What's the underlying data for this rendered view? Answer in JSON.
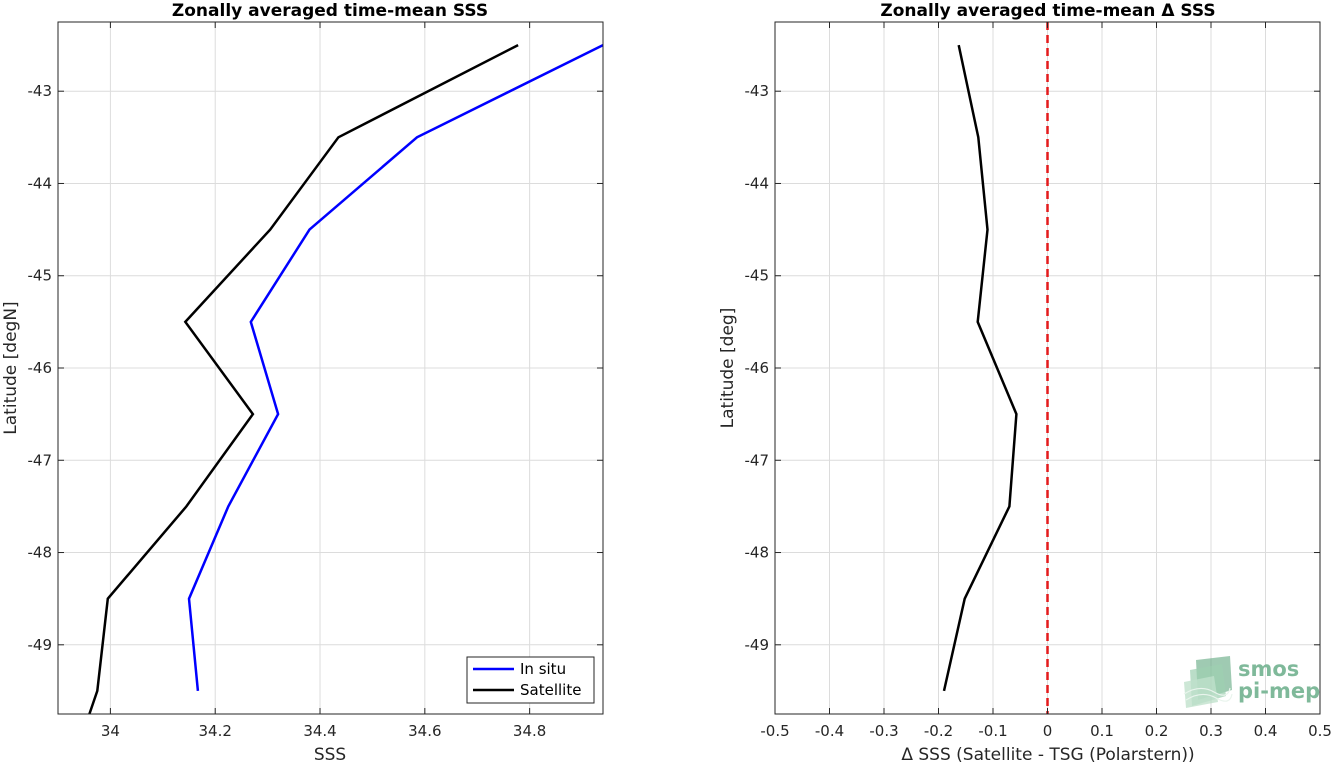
{
  "chart_data": [
    {
      "type": "line",
      "title": "Zonally averaged time-mean SSS",
      "xlabel": "SSS",
      "ylabel": "Latitude [degN]",
      "xlim": [
        33.9,
        34.94
      ],
      "ylim": [
        -49.75,
        -42.25
      ],
      "xticks": [
        "34",
        "34.2",
        "34.4",
        "34.6",
        "34.8"
      ],
      "xtick_values": [
        34,
        34.2,
        34.4,
        34.6,
        34.8
      ],
      "yticks": [
        "-43",
        "-44",
        "-45",
        "-46",
        "-47",
        "-48",
        "-49"
      ],
      "ytick_values": [
        -43,
        -44,
        -45,
        -46,
        -47,
        -48,
        -49
      ],
      "grid": true,
      "legend_position": "bottom-right",
      "series": [
        {
          "name": "In situ",
          "color": "#0000ff",
          "x": [
            34.167,
            34.15,
            34.225,
            34.32,
            34.268,
            34.38,
            34.585,
            34.94
          ],
          "y": [
            -49.5,
            -48.5,
            -47.5,
            -46.5,
            -45.5,
            -44.5,
            -43.5,
            -42.5
          ]
        },
        {
          "name": "Satellite",
          "color": "#000000",
          "x": [
            33.96,
            33.975,
            33.995,
            34.145,
            34.272,
            34.143,
            34.305,
            34.435,
            34.778
          ],
          "y": [
            -49.75,
            -49.5,
            -48.5,
            -47.5,
            -46.5,
            -45.5,
            -44.5,
            -43.5,
            -42.5
          ]
        }
      ]
    },
    {
      "type": "line",
      "title": "Zonally averaged time-mean Δ SSS",
      "xlabel": "Δ SSS (Satellite - TSG (Polarstern))",
      "ylabel": "Latitude [deg]",
      "xlim": [
        -0.5,
        0.5
      ],
      "ylim": [
        -49.75,
        -42.25
      ],
      "xticks": [
        "-0.5",
        "-0.4",
        "-0.3",
        "-0.2",
        "-0.1",
        "0",
        "0.1",
        "0.2",
        "0.3",
        "0.4",
        "0.5"
      ],
      "xtick_values": [
        -0.5,
        -0.4,
        -0.3,
        -0.2,
        -0.1,
        0,
        0.1,
        0.2,
        0.3,
        0.4,
        0.5
      ],
      "yticks": [
        "-43",
        "-44",
        "-45",
        "-46",
        "-47",
        "-48",
        "-49"
      ],
      "ytick_values": [
        -43,
        -44,
        -45,
        -46,
        -47,
        -48,
        -49
      ],
      "grid": true,
      "reference_line": {
        "x": 0,
        "color": "#e41a1c",
        "style": "dashed"
      },
      "series": [
        {
          "color": "#000000",
          "x": [
            -0.19,
            -0.152,
            -0.07,
            -0.057,
            -0.128,
            -0.11,
            -0.127,
            -0.163
          ],
          "y": [
            -49.5,
            -48.5,
            -47.5,
            -46.5,
            -45.5,
            -44.5,
            -43.5,
            -42.5
          ]
        }
      ]
    }
  ],
  "logo": {
    "line1": "smos",
    "line2": "pi-mep",
    "color": "#7fb99a"
  }
}
